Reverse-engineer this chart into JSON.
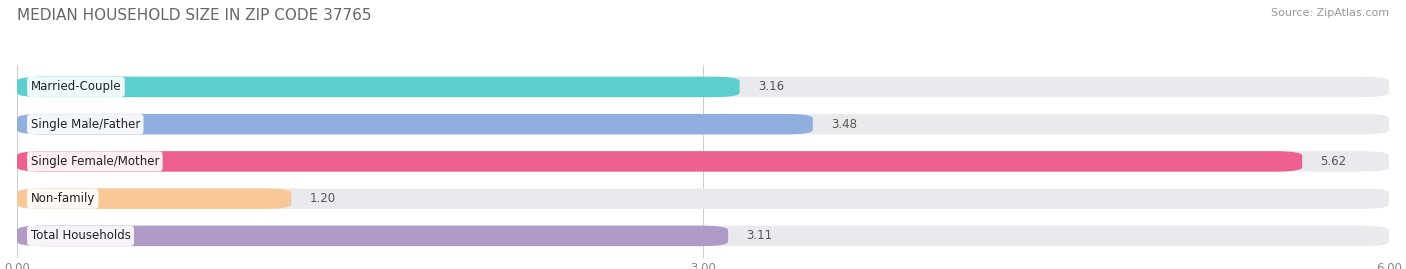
{
  "title": "MEDIAN HOUSEHOLD SIZE IN ZIP CODE 37765",
  "source": "Source: ZipAtlas.com",
  "categories": [
    "Married-Couple",
    "Single Male/Father",
    "Single Female/Mother",
    "Non-family",
    "Total Households"
  ],
  "values": [
    3.16,
    3.48,
    5.62,
    1.2,
    3.11
  ],
  "bar_colors": [
    "#5BCECE",
    "#90AFDF",
    "#EE6090",
    "#F8C896",
    "#B09AC8"
  ],
  "bar_bg_color": "#EAEAEE",
  "xlim": [
    0,
    6.0
  ],
  "xticks": [
    0.0,
    3.0,
    6.0
  ],
  "xtick_labels": [
    "0.00",
    "3.00",
    "6.00"
  ],
  "title_fontsize": 11,
  "source_fontsize": 8,
  "label_fontsize": 8.5,
  "value_fontsize": 8.5,
  "background_color": "#FFFFFF",
  "bar_height": 0.55,
  "bar_gap": 1.0,
  "fig_width": 14.06,
  "fig_height": 2.69
}
